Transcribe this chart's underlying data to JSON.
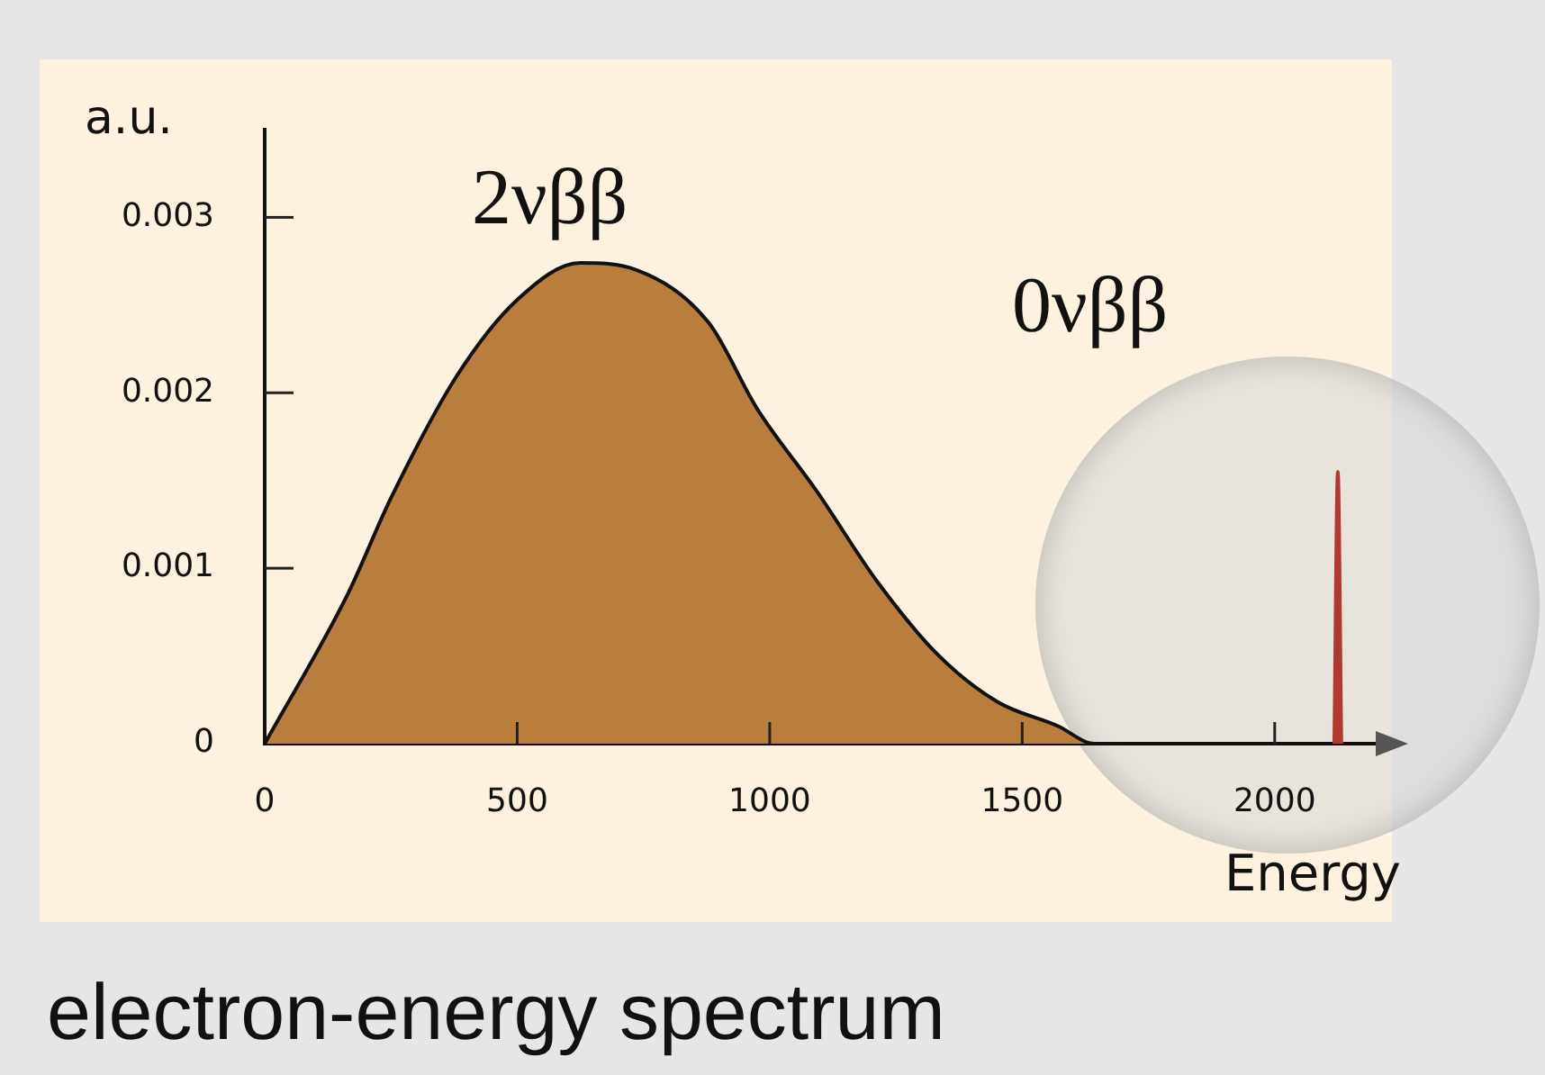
{
  "chart_data": {
    "type": "area",
    "title": "electron-energy spectrum",
    "xlabel": "Energy",
    "ylabel": "a.u.",
    "annotations": [
      "2νββ",
      "0νββ"
    ],
    "xlim": [
      0,
      2250
    ],
    "ylim": [
      0,
      0.0035
    ],
    "xticks": [
      0,
      500,
      1000,
      1500,
      2000
    ],
    "yticks": [
      0,
      0.001,
      0.002,
      0.003
    ],
    "grid": false,
    "legend": false,
    "series": [
      {
        "color": "#b97d3d",
        "x": [
          0,
          164,
          250,
          379,
          500,
          625,
          736,
          879,
          975,
          1093,
          1214,
          1332,
          1450,
          1571,
          1643,
          1800
        ],
        "values": [
          0,
          0.00085,
          0.0014,
          0.00209,
          0.00253,
          0.00274,
          0.0027,
          0.0024,
          0.00191,
          0.00144,
          0.00092,
          0.00051,
          0.00024,
          0.0001,
          0,
          0
        ]
      },
      {
        "color": "#b03a2e",
        "x": [
          2118,
          2125,
          2132
        ],
        "values": [
          0,
          0.00155,
          0
        ]
      }
    ]
  }
}
